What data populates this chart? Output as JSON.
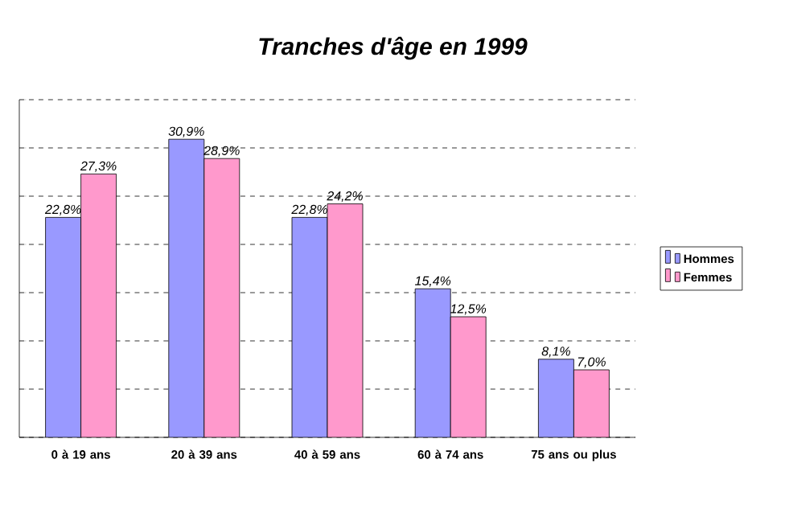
{
  "chart_data": {
    "type": "bar",
    "title": "Tranches d'âge en 1999",
    "categories": [
      "0 à 19 ans",
      "20 à 39 ans",
      "40 à 59 ans",
      "60 à 74 ans",
      "75 ans ou plus"
    ],
    "series": [
      {
        "name": "Hommes",
        "color": "#9999ff",
        "values": [
          22.8,
          30.9,
          22.8,
          15.4,
          8.1
        ],
        "value_labels": [
          "22,8%",
          "30,9%",
          "22,8%",
          "15,4%",
          "8,1%"
        ]
      },
      {
        "name": "Femmes",
        "color": "#ff99cc",
        "values": [
          27.3,
          28.9,
          24.2,
          12.5,
          7.0
        ],
        "value_labels": [
          "27,3%",
          "28,9%",
          "24,2%",
          "12,5%",
          "7,0%"
        ]
      }
    ],
    "ylim": [
      0,
      35
    ],
    "yticks": [
      {
        "value": 0,
        "label": null
      },
      {
        "value": 5,
        "label": null
      },
      {
        "value": 10,
        "label": null
      },
      {
        "value": 15,
        "label": null
      },
      {
        "value": 20,
        "label": null
      },
      {
        "value": 25,
        "label": null
      },
      {
        "value": 30,
        "label": null
      },
      {
        "value": 35,
        "label": null
      }
    ],
    "tick_labels": "x",
    "grid": "y",
    "legend": "right"
  }
}
